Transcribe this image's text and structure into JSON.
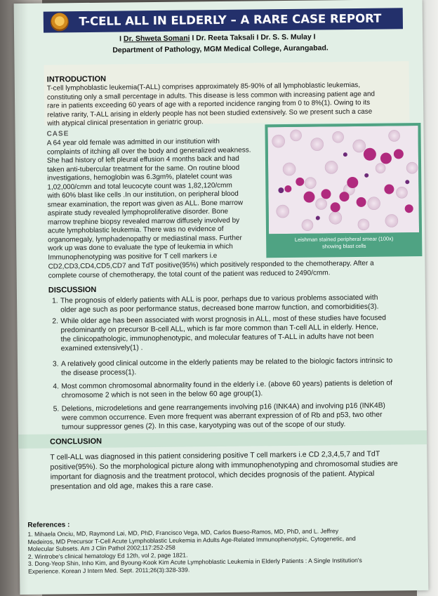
{
  "title": "T-CELL ALL IN ELDERLY – A RARE CASE REPORT",
  "authors": {
    "sep": "I",
    "a1": "Dr. Shweta Somani",
    "a2": "Dr. Reeta Taksali",
    "a3": "Dr. S. S. Mulay"
  },
  "department": "Department of Pathology, MGM Medical College, Aurangabad.",
  "logo_caption": "Mahatma Gandhi Mission",
  "introduction": {
    "heading": "INTRODUCTION",
    "lines": [
      "T-cell lymphoblastic leukemia(T-ALL) comprises approximately 85-90% of all lymphoblastic leukemias,",
      "constituting only a small percentage in adults.  This disease is less common with increasing patient age and",
      "rare in patients exceeding 60 years of age with a reported incidence ranging from 0 to 8%(1).  Owing to its",
      "relative rarity, T-ALL arising in elderly people has not been studied extensively. So we present such a case",
      "with atypical clinical presentation in geriatric group."
    ]
  },
  "case": {
    "heading": "CASE",
    "lines": [
      "A 64 year old female   was admitted in our institution with",
      "complaints of itching all over the body and generalized weakness.",
      "She had history of left pleural effusion 4 months back and had",
      "taken anti-tubercular treatment for the same. On routine blood",
      "investigations, hemoglobin was 6.3gm%, platelet count was",
      "1,02,000/cmm and  total leucocyte count was 1,82,120/cmm",
      "with 60% blast like cells .In our institution, on peripheral blood",
      "smear examination, the report was given as ALL.  Bone marrow",
      "aspirate study revealed lymphoproliferative disorder. Bone",
      "marrow trephine biopsy revealed marrow diffusely involved by",
      "acute lymphoblastic leukemia.  There was no evidence of",
      "organomegaly, lymphadenopathy or mediastinal mass. Further",
      "work up was done to evaluate the  type of leukemia in which",
      "Immunophenotyping    was positive for T cell markers i.e"
    ],
    "full_lines": [
      "CD2,CD3,CD4,CD5,CD7 and TdT positive(95%) which positively responded to the chemotherapy. After a",
      "complete course of chemotherapy, the total count of the patient was reduced to 2490/cmm."
    ],
    "figure_caption_1": "Leishman stained peripheral smear  (100x)",
    "figure_caption_2": "showing blast cells"
  },
  "discussion": {
    "heading": "DISCUSSION",
    "items": [
      {
        "num": "1.",
        "lines": [
          "The prognosis of elderly patients with ALL is poor, perhaps due to various problems associated with",
          "older age such as poor performance status, decreased bone marrow function, and comorbidities(3)."
        ]
      },
      {
        "num": "2.",
        "lines": [
          "While older age has been associated with worst prognosis in ALL, most of these studies have focused",
          "predominantly on precursor B-cell ALL, which is far more common than  T-cell ALL in elderly. Hence,",
          "the clinicopathologic, immunophenotypic, and molecular features of T-ALL in adults have not been",
          "examined extensively(1) ."
        ]
      },
      {
        "num": "3.",
        "lines": [
          "A relatively good clinical outcome in the elderly patients may be related to the biologic factors intrinsic to",
          "the disease process(1)."
        ]
      },
      {
        "num": "4.",
        "lines": [
          "Most common chromosomal abnormality found in the elderly i.e. (above 60 years) patients is deletion of",
          "chromosome 2 which is not seen in the below 60 age group(1)."
        ]
      },
      {
        "num": "5.",
        "lines": [
          "Deletions, microdeletions and gene rearrangements involving p16 (INK4A) and  involving p16 (INK4B)",
          "were common occurrence. Even more frequent was aberrant expression of of Rb and p53, two other",
          "tumour suppressor genes (2).  In this case,  karyotyping  was out of the scope of our study."
        ]
      }
    ]
  },
  "conclusion": {
    "heading": "CONCLUSION",
    "lines": [
      "T cell-ALL was diagnosed in this patient considering positive T cell markers i.e CD 2,3,4,5,7 and TdT",
      "positive(95%). So the morphological picture along with immunophenotyping and chromosomal studies are",
      "important for diagnosis and the treatment protocol, which decides prognosis of the patient. Atypical",
      "presentation and old age, makes this a rare case."
    ]
  },
  "references": {
    "heading": "References :",
    "lines": [
      "1. Mihaela Onciu, MD, Raymond Lai, MD, PhD, Francisco Vega, MD, Carlos Bueso-Ramos, MD, PhD, and L. Jeffrey",
      "    Medeiros, MD Precursor T-Cell Acute Lymphoblastic Leukemia in Adults Age-Related Immunophenotypic, Cytogenetic, and",
      "    Molecular Subsets. Am J Clin Pathol 2002;117:252-258",
      "2. Wintrobe's clinical hematology Ed 12th,  vol 2, page 1821.",
      "3. Dong-Yeop Shin, Inho Kim, and Byoung-Kook Kim Acute Lymphoblastic Leukemia in Elderly Patients : A Single Institution's",
      "    Experience. Korean J Intern Med. Sept. 2011;26(3):328-339."
    ]
  },
  "colors": {
    "title_bar": "#23306b",
    "poster_bg": "#e2efe6",
    "figure_frame": "#4fa383"
  }
}
